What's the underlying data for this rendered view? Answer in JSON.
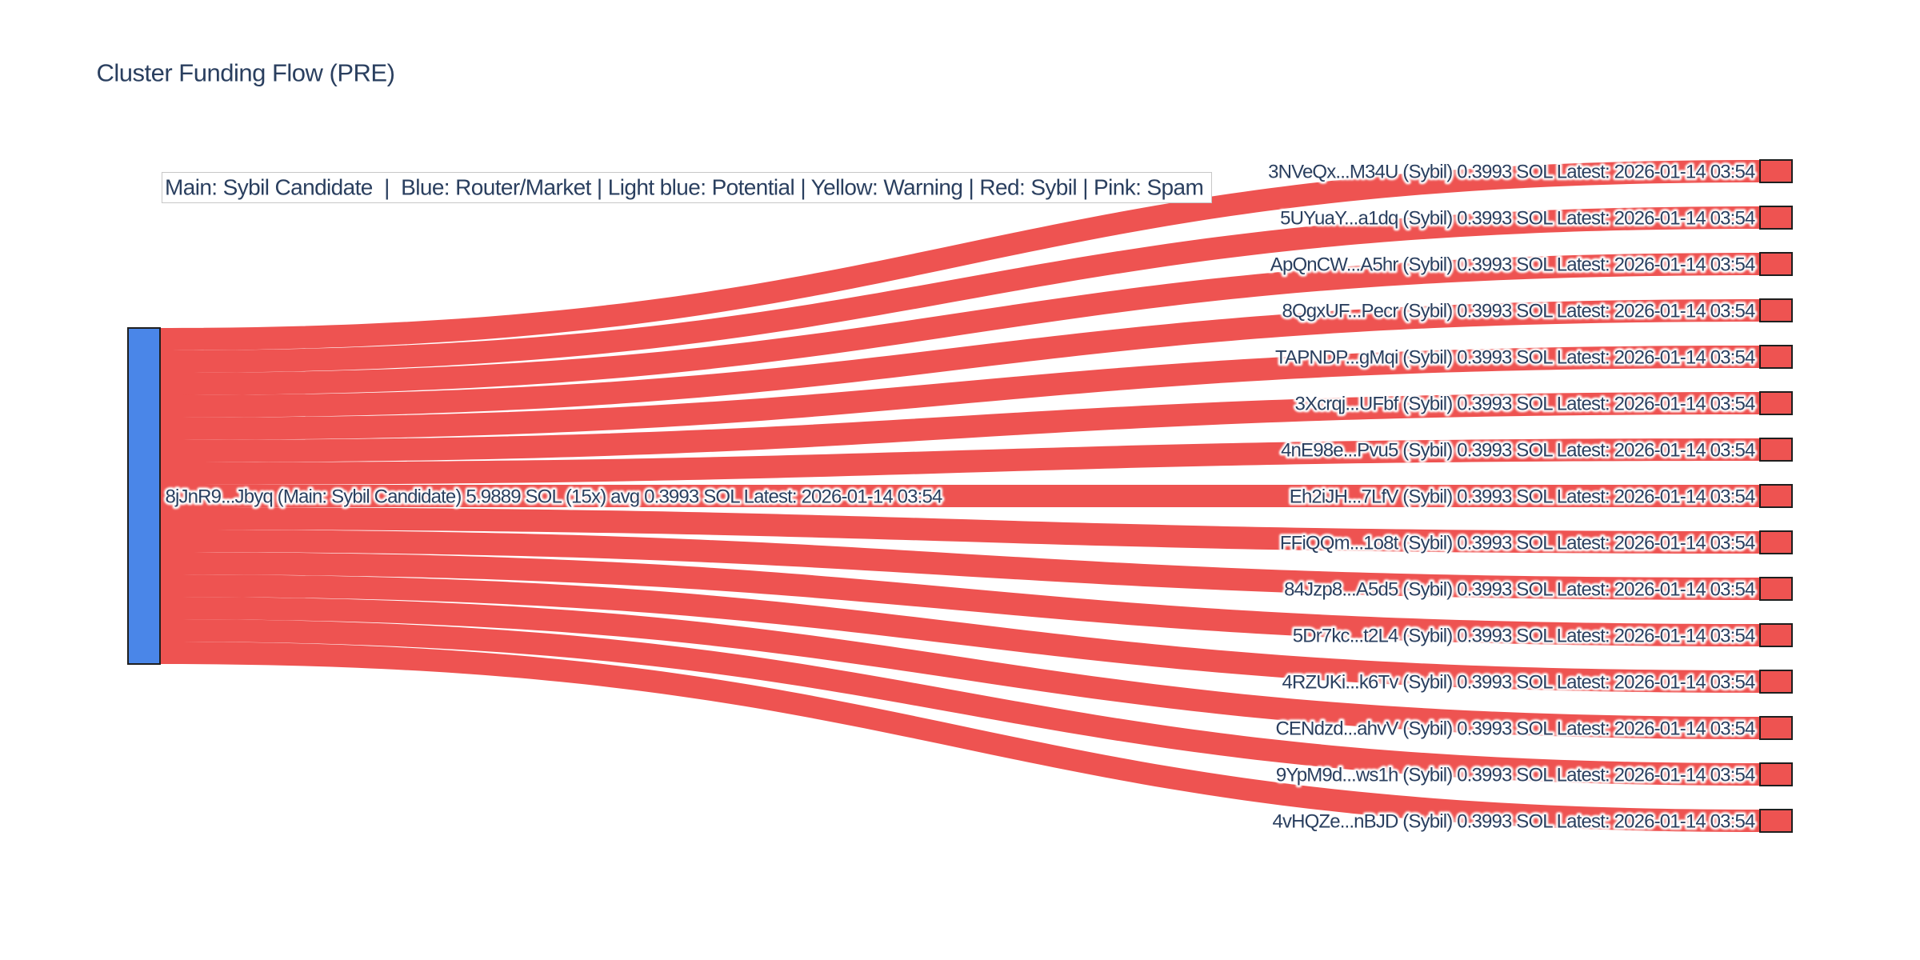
{
  "title": "Cluster Funding Flow (PRE)",
  "annotation": "Main: Sybil Candidate  |  Blue: Router/Market | Light blue: Potential | Yellow: Warning | Red: Sybil | Pink: Spam",
  "colors": {
    "background": "#ffffff",
    "title_text": "#2a3f5f",
    "label_text": "#2a3f5f",
    "label_halo": "#ffffff",
    "annotation_text": "#2a3f5f",
    "annotation_border": "#c7c7c7",
    "annotation_bg": "#ffffff",
    "main_node": "#4a86e8",
    "sybil_node": "#ee5351",
    "sybil_link": "#ee5351",
    "node_border": "#1f1f1f"
  },
  "chart_data": {
    "type": "sankey",
    "unit": "SOL",
    "source": {
      "id": "8jJnR9...Jbyq",
      "role": "Main: Sybil Candidate",
      "total_sol": 5.9889,
      "tx_count": 15,
      "avg_sol": 0.3993,
      "latest": "2026-01-14 03:54",
      "label": "8jJnR9...Jbyq (Main: Sybil Candidate) 5.9889 SOL (15x) avg 0.3993 SOL Latest: 2026-01-14 03:54"
    },
    "flows": [
      {
        "target_id": "3NVeQx...M34U",
        "status": "Sybil",
        "value": 0.3993,
        "latest": "2026-01-14 03:54",
        "label": "3NVeQx...M34U (Sybil) 0.3993 SOL Latest: 2026-01-14 03:54"
      },
      {
        "target_id": "5UYuaY...a1dq",
        "status": "Sybil",
        "value": 0.3993,
        "latest": "2026-01-14 03:54",
        "label": "5UYuaY...a1dq (Sybil) 0.3993 SOL Latest: 2026-01-14 03:54"
      },
      {
        "target_id": "ApQnCW...A5hr",
        "status": "Sybil",
        "value": 0.3993,
        "latest": "2026-01-14 03:54",
        "label": "ApQnCW...A5hr (Sybil) 0.3993 SOL Latest: 2026-01-14 03:54"
      },
      {
        "target_id": "8QgxUF...Pecr",
        "status": "Sybil",
        "value": 0.3993,
        "latest": "2026-01-14 03:54",
        "label": "8QgxUF...Pecr (Sybil) 0.3993 SOL Latest: 2026-01-14 03:54"
      },
      {
        "target_id": "TAPNDP...gMqi",
        "status": "Sybil",
        "value": 0.3993,
        "latest": "2026-01-14 03:54",
        "label": "TAPNDP...gMqi (Sybil) 0.3993 SOL Latest: 2026-01-14 03:54"
      },
      {
        "target_id": "3Xcrqj...UFbf",
        "status": "Sybil",
        "value": 0.3993,
        "latest": "2026-01-14 03:54",
        "label": "3Xcrqj...UFbf (Sybil) 0.3993 SOL Latest: 2026-01-14 03:54"
      },
      {
        "target_id": "4nE98e...Pvu5",
        "status": "Sybil",
        "value": 0.3993,
        "latest": "2026-01-14 03:54",
        "label": "4nE98e...Pvu5 (Sybil) 0.3993 SOL Latest: 2026-01-14 03:54"
      },
      {
        "target_id": "Eh2iJH...7LfV",
        "status": "Sybil",
        "value": 0.3993,
        "latest": "2026-01-14 03:54",
        "label": "Eh2iJH...7LfV (Sybil) 0.3993 SOL Latest: 2026-01-14 03:54"
      },
      {
        "target_id": "FFiQQm...1o8t",
        "status": "Sybil",
        "value": 0.3993,
        "latest": "2026-01-14 03:54",
        "label": "FFiQQm...1o8t (Sybil) 0.3993 SOL Latest: 2026-01-14 03:54"
      },
      {
        "target_id": "84Jzp8...A5d5",
        "status": "Sybil",
        "value": 0.3993,
        "latest": "2026-01-14 03:54",
        "label": "84Jzp8...A5d5 (Sybil) 0.3993 SOL Latest: 2026-01-14 03:54"
      },
      {
        "target_id": "5Dr7kc...t2L4",
        "status": "Sybil",
        "value": 0.3993,
        "latest": "2026-01-14 03:54",
        "label": "5Dr7kc...t2L4 (Sybil) 0.3993 SOL Latest: 2026-01-14 03:54"
      },
      {
        "target_id": "4RZUKi...k6Tv",
        "status": "Sybil",
        "value": 0.3993,
        "latest": "2026-01-14 03:54",
        "label": "4RZUKi...k6Tv (Sybil) 0.3993 SOL Latest: 2026-01-14 03:54"
      },
      {
        "target_id": "CENdzd...ahvV",
        "status": "Sybil",
        "value": 0.3993,
        "latest": "2026-01-14 03:54",
        "label": "CENdzd...ahvV (Sybil) 0.3993 SOL Latest: 2026-01-14 03:54"
      },
      {
        "target_id": "9YpM9d...ws1h",
        "status": "Sybil",
        "value": 0.3993,
        "latest": "2026-01-14 03:54",
        "label": "9YpM9d...ws1h (Sybil) 0.3993 SOL Latest: 2026-01-14 03:54"
      },
      {
        "target_id": "4vHQZe...nBJD",
        "status": "Sybil",
        "value": 0.3993,
        "latest": "2026-01-14 03:54",
        "label": "4vHQZe...nBJD (Sybil) 0.3993 SOL Latest: 2026-01-14 03:54"
      }
    ]
  }
}
